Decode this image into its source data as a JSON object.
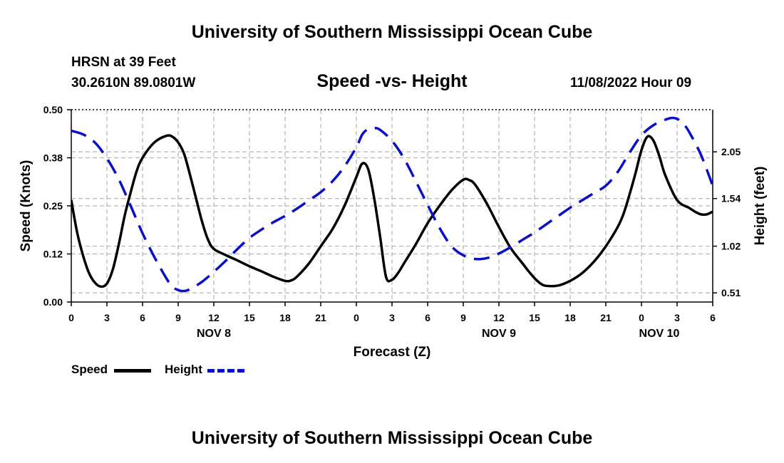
{
  "header": {
    "title_top": "University of Southern Mississippi Ocean Cube",
    "station": "HRSN at 39 Feet",
    "coords": "30.2610N  89.0801W",
    "subtitle": "Speed -vs- Height",
    "datetime": "11/08/2022 Hour 09",
    "title_bottom": "University of Southern Mississippi Ocean Cube"
  },
  "legend": {
    "speed_label": "Speed",
    "height_label": "Height"
  },
  "colors": {
    "speed": "#000000",
    "height": "#0a10c8",
    "grid": "#b4b4b4"
  },
  "chart_data": {
    "type": "line",
    "xlabel": "Forecast (Z)",
    "ylabel_left": "Speed (Knots)",
    "ylabel_right": "Height (feet)",
    "xlim": [
      0,
      54
    ],
    "ylim_left": [
      0,
      0.5
    ],
    "ylim_right": [
      0.41,
      2.51
    ],
    "x_ticks": [
      {
        "x": 0,
        "label": "0"
      },
      {
        "x": 3,
        "label": "3"
      },
      {
        "x": 6,
        "label": "6"
      },
      {
        "x": 9,
        "label": "9"
      },
      {
        "x": 12,
        "label": "12"
      },
      {
        "x": 15,
        "label": "15"
      },
      {
        "x": 18,
        "label": "18"
      },
      {
        "x": 21,
        "label": "21"
      },
      {
        "x": 24,
        "label": "0"
      },
      {
        "x": 27,
        "label": "3"
      },
      {
        "x": 30,
        "label": "6"
      },
      {
        "x": 33,
        "label": "9"
      },
      {
        "x": 36,
        "label": "12"
      },
      {
        "x": 39,
        "label": "15"
      },
      {
        "x": 42,
        "label": "18"
      },
      {
        "x": 45,
        "label": "21"
      },
      {
        "x": 48,
        "label": "0"
      },
      {
        "x": 51,
        "label": "3"
      },
      {
        "x": 54,
        "label": "6"
      }
    ],
    "date_labels": [
      {
        "x": 12,
        "label": "NOV 8"
      },
      {
        "x": 36,
        "label": "NOV 9"
      },
      {
        "x": 49.5,
        "label": "NOV 10"
      }
    ],
    "y_left_ticks": [
      {
        "v": 0.0,
        "label": "0.00"
      },
      {
        "v": 0.125,
        "label": "0.12"
      },
      {
        "v": 0.25,
        "label": "0.25"
      },
      {
        "v": 0.375,
        "label": "0.38"
      },
      {
        "v": 0.5,
        "label": "0.50"
      }
    ],
    "y_right_ticks": [
      {
        "v": 0.51,
        "label": "0.51"
      },
      {
        "v": 1.02,
        "label": "1.02"
      },
      {
        "v": 1.54,
        "label": "1.54"
      },
      {
        "v": 2.05,
        "label": "2.05"
      }
    ],
    "series": [
      {
        "name": "Speed",
        "axis": "left",
        "style": "solid",
        "x": [
          0,
          0.5,
          1,
          1.5,
          2,
          2.5,
          3,
          3.5,
          4,
          4.5,
          5,
          5.5,
          6,
          7,
          8,
          8.5,
          9,
          9.5,
          10,
          10.5,
          11,
          11.5,
          12,
          13,
          14,
          15,
          16,
          17,
          18,
          18.5,
          19,
          20,
          21,
          22,
          23,
          24,
          24.5,
          25,
          25.5,
          26,
          26.5,
          27,
          27.5,
          28,
          29,
          30,
          31,
          32,
          33,
          33.5,
          34,
          35,
          36,
          37,
          38,
          38.5,
          39,
          39.5,
          40,
          41,
          42,
          43,
          44,
          45,
          46,
          46.5,
          47,
          47.5,
          48,
          48.5,
          49,
          49.5,
          50,
          51,
          52,
          52.5,
          53,
          53.5,
          54
        ],
        "values": [
          0.265,
          0.18,
          0.12,
          0.075,
          0.05,
          0.04,
          0.048,
          0.085,
          0.15,
          0.225,
          0.285,
          0.34,
          0.375,
          0.415,
          0.432,
          0.43,
          0.415,
          0.385,
          0.33,
          0.27,
          0.21,
          0.163,
          0.138,
          0.122,
          0.108,
          0.093,
          0.08,
          0.066,
          0.055,
          0.056,
          0.066,
          0.1,
          0.145,
          0.19,
          0.25,
          0.325,
          0.36,
          0.345,
          0.27,
          0.17,
          0.065,
          0.058,
          0.075,
          0.1,
          0.15,
          0.205,
          0.25,
          0.29,
          0.318,
          0.317,
          0.305,
          0.255,
          0.195,
          0.14,
          0.1,
          0.08,
          0.062,
          0.048,
          0.042,
          0.043,
          0.055,
          0.075,
          0.105,
          0.145,
          0.195,
          0.23,
          0.28,
          0.335,
          0.395,
          0.43,
          0.42,
          0.38,
          0.33,
          0.265,
          0.245,
          0.235,
          0.228,
          0.228,
          0.235
        ]
      },
      {
        "name": "Height",
        "axis": "right",
        "style": "dashed",
        "x": [
          0,
          1,
          2,
          3,
          4,
          5,
          6,
          7,
          8,
          8.5,
          9,
          9.5,
          10,
          11,
          12,
          13,
          14,
          15,
          16,
          17,
          18,
          19,
          20,
          21,
          22,
          23,
          24,
          24.5,
          25,
          25.5,
          26,
          27,
          28,
          29,
          30,
          31,
          32,
          33,
          34,
          35,
          36,
          37,
          38,
          39,
          40,
          41,
          42,
          43,
          44,
          45,
          46,
          47,
          48,
          49,
          50,
          50.5,
          51,
          51.5,
          52,
          53,
          54
        ],
        "values": [
          2.28,
          2.24,
          2.15,
          1.98,
          1.75,
          1.46,
          1.16,
          0.9,
          0.67,
          0.58,
          0.54,
          0.53,
          0.55,
          0.63,
          0.74,
          0.86,
          0.99,
          1.11,
          1.2,
          1.28,
          1.35,
          1.43,
          1.52,
          1.61,
          1.73,
          1.89,
          2.1,
          2.24,
          2.3,
          2.31,
          2.29,
          2.17,
          1.98,
          1.73,
          1.47,
          1.22,
          1.02,
          0.92,
          0.88,
          0.89,
          0.94,
          1.01,
          1.09,
          1.17,
          1.26,
          1.35,
          1.44,
          1.52,
          1.6,
          1.68,
          1.83,
          2.04,
          2.23,
          2.34,
          2.4,
          2.42,
          2.41,
          2.36,
          2.27,
          2.02,
          1.68
        ]
      }
    ]
  }
}
